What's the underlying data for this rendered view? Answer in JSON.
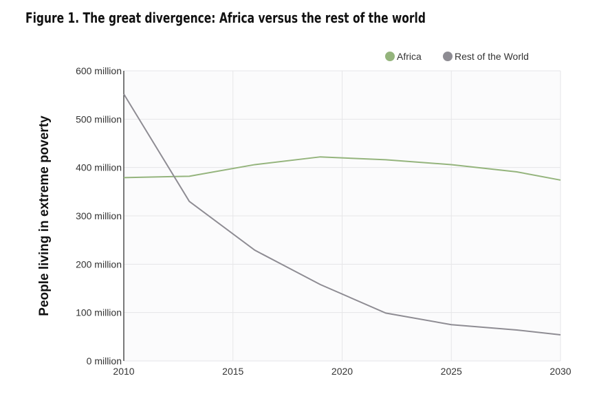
{
  "chart_data": {
    "type": "line",
    "title": "Figure 1. The great divergence: Africa versus the rest of the world",
    "xlabel": "",
    "ylabel": "People living in extreme poverty",
    "xlim": [
      2010,
      2030
    ],
    "ylim": [
      0,
      600
    ],
    "x_ticks": [
      "2010",
      "2015",
      "2020",
      "2025",
      "2030"
    ],
    "y_ticks": [
      "0 million",
      "100 million",
      "200 million",
      "300 million",
      "400 million",
      "500 million",
      "600 million"
    ],
    "grid": true,
    "legend_position": "top-right",
    "x": [
      2010,
      2013,
      2016,
      2019,
      2022,
      2025,
      2028,
      2030
    ],
    "series": [
      {
        "name": "Africa",
        "color": "#94b47c",
        "values": [
          379,
          382,
          406,
          422,
          416,
          406,
          391,
          374
        ]
      },
      {
        "name": "Rest of the World",
        "color": "#8e8c93",
        "values": [
          552,
          330,
          229,
          158,
          99,
          75,
          64,
          54
        ]
      }
    ]
  }
}
